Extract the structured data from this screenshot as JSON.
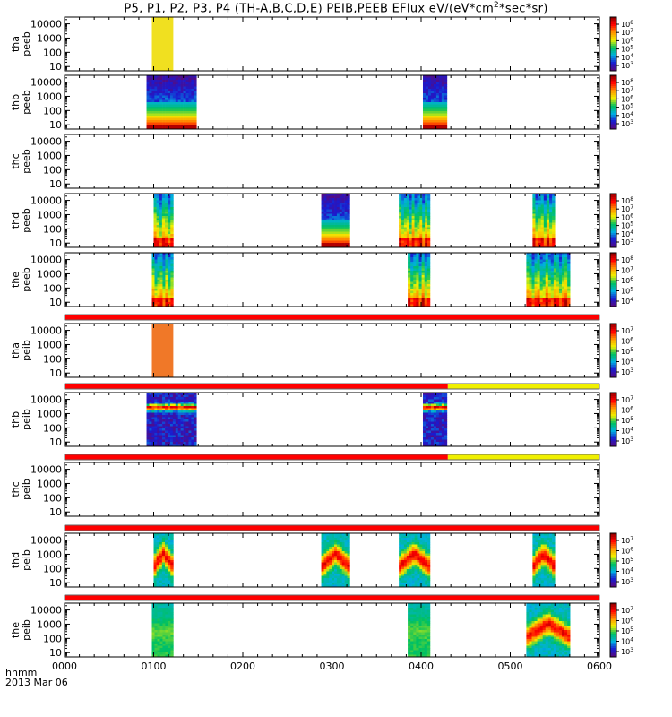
{
  "title": {
    "prefix": "P5, P1, P2, P3, P4 (TH-A,B,C,D,E) PEIB,PEEB EFlux eV/(eV*cm",
    "sup": "2",
    "suffix": "*sec*sr)"
  },
  "bottom_label": {
    "line1": "hhmm",
    "line2": "2013 Mar 06"
  },
  "chart_data": {
    "type": "heatmap",
    "x_axis": {
      "ticks": [
        "0000",
        "0100",
        "0200",
        "0300",
        "0400",
        "0500",
        "0600"
      ],
      "range_hours": [
        0,
        6
      ]
    },
    "y_axis": {
      "scale": "log",
      "ticks": [
        "10",
        "100",
        "1000",
        "10000"
      ],
      "range_eV": [
        5,
        30000
      ]
    },
    "colormap": [
      "#5a0a7a",
      "#1a1ad0",
      "#00b0e0",
      "#00c060",
      "#f0f000",
      "#ff9000",
      "#ff0000",
      "#8a0000"
    ],
    "panels": [
      {
        "probe": "tha",
        "product": "peeb",
        "segments": [
          {
            "start": 0.98,
            "end": 1.22,
            "pattern": "flat",
            "color": "#f0e020"
          }
        ],
        "colorbar": {
          "ticks": [
            "10^8",
            "10^7",
            "10^6",
            "10^5",
            "10^4",
            "10^3"
          ]
        }
      },
      {
        "probe": "thb",
        "product": "peeb",
        "segments": [
          {
            "start": 0.92,
            "end": 1.48,
            "pattern": "electron"
          },
          {
            "start": 4.02,
            "end": 4.29,
            "pattern": "electron"
          }
        ],
        "colorbar": {
          "ticks": [
            "10^8",
            "10^7",
            "10^6",
            "10^5",
            "10^4",
            "10^3"
          ]
        }
      },
      {
        "probe": "thc",
        "product": "peeb",
        "segments": [],
        "colorbar": null
      },
      {
        "probe": "thd",
        "product": "peeb",
        "segments": [
          {
            "start": 1.0,
            "end": 1.22,
            "pattern": "mixed"
          },
          {
            "start": 2.88,
            "end": 3.2,
            "pattern": "electron"
          },
          {
            "start": 3.75,
            "end": 4.1,
            "pattern": "mixed"
          },
          {
            "start": 5.25,
            "end": 5.5,
            "pattern": "mixed"
          }
        ],
        "colorbar": {
          "ticks": [
            "10^8",
            "10^7",
            "10^6",
            "10^5",
            "10^4",
            "10^3"
          ]
        }
      },
      {
        "probe": "the",
        "product": "peeb",
        "segments": [
          {
            "start": 0.98,
            "end": 1.22,
            "pattern": "mixed"
          },
          {
            "start": 3.85,
            "end": 4.1,
            "pattern": "mixed"
          },
          {
            "start": 5.18,
            "end": 5.67,
            "pattern": "mixed"
          }
        ],
        "colorbar": {
          "ticks": [
            "10^8",
            "10^7",
            "10^6",
            "10^5",
            "10^4"
          ]
        }
      },
      {
        "probe": "tha",
        "product": "peib",
        "segments": [
          {
            "start": 0.98,
            "end": 1.22,
            "pattern": "flat",
            "color": "#f07828"
          }
        ],
        "colorbar": {
          "ticks": [
            "10^7",
            "10^6",
            "10^5",
            "10^4",
            "10^3"
          ]
        }
      },
      {
        "probe": "thb",
        "product": "peib",
        "segments": [
          {
            "start": 0.92,
            "end": 1.48,
            "pattern": "ion"
          },
          {
            "start": 4.02,
            "end": 4.29,
            "pattern": "ion"
          }
        ],
        "colorbar": {
          "ticks": [
            "10^7",
            "10^6",
            "10^5",
            "10^4",
            "10^3"
          ]
        }
      },
      {
        "probe": "thc",
        "product": "peib",
        "segments": [],
        "colorbar": null
      },
      {
        "probe": "thd",
        "product": "peib",
        "segments": [
          {
            "start": 1.0,
            "end": 1.22,
            "pattern": "ionv"
          },
          {
            "start": 2.88,
            "end": 3.2,
            "pattern": "ionv"
          },
          {
            "start": 3.75,
            "end": 4.1,
            "pattern": "ionv"
          },
          {
            "start": 5.25,
            "end": 5.5,
            "pattern": "ionv"
          }
        ],
        "colorbar": {
          "ticks": [
            "10^7",
            "10^6",
            "10^5",
            "10^4",
            "10^3"
          ]
        }
      },
      {
        "probe": "the",
        "product": "peib",
        "segments": [
          {
            "start": 0.98,
            "end": 1.22,
            "pattern": "ionlow"
          },
          {
            "start": 3.85,
            "end": 4.1,
            "pattern": "ionlow"
          },
          {
            "start": 5.18,
            "end": 5.67,
            "pattern": "ionv"
          }
        ],
        "colorbar": {
          "ticks": [
            "10^7",
            "10^6",
            "10^5",
            "10^4",
            "10^3"
          ]
        }
      }
    ],
    "status_bars": [
      {
        "after_panel": 4,
        "segments": [
          {
            "start": 0,
            "end": 6,
            "color": "#ff0000"
          }
        ]
      },
      {
        "after_panel": 5,
        "segments": [
          {
            "start": 0,
            "end": 4.3,
            "color": "#ff0000"
          },
          {
            "start": 4.3,
            "end": 6,
            "color": "#f0f000"
          }
        ]
      },
      {
        "after_panel": 6,
        "segments": [
          {
            "start": 0,
            "end": 4.3,
            "color": "#ff0000"
          },
          {
            "start": 4.3,
            "end": 6,
            "color": "#f0f000"
          }
        ]
      },
      {
        "after_panel": 7,
        "segments": [
          {
            "start": 0,
            "end": 6,
            "color": "#ff0000"
          }
        ]
      },
      {
        "after_panel": 8,
        "segments": [
          {
            "start": 0,
            "end": 6,
            "color": "#ff0000"
          }
        ]
      }
    ]
  }
}
